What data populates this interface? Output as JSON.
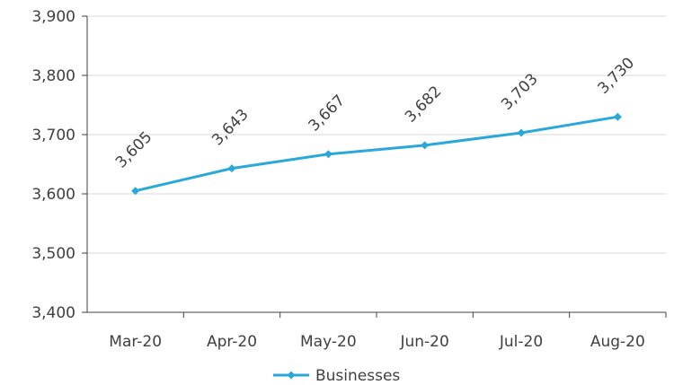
{
  "chart_data": {
    "type": "line",
    "title": "",
    "xlabel": "",
    "ylabel": "",
    "categories": [
      "Mar-20",
      "Apr-20",
      "May-20",
      "Jun-20",
      "Jul-20",
      "Aug-20"
    ],
    "series": [
      {
        "name": "Businesses",
        "values": [
          3605,
          3643,
          3667,
          3682,
          3703,
          3730
        ],
        "data_labels": [
          "3,605",
          "3,643",
          "3,667",
          "3,682",
          "3,703",
          "3,730"
        ],
        "color": "#2aa8d8",
        "marker": "diamond"
      }
    ],
    "ylim": [
      3400,
      3900
    ],
    "yticks": [
      3400,
      3500,
      3600,
      3700,
      3800,
      3900
    ],
    "ytick_labels": [
      "3,400",
      "3,500",
      "3,600",
      "3,700",
      "3,800",
      "3,900"
    ],
    "grid": true,
    "legend": "bottom"
  },
  "colors": {
    "series": "#2aa8d8",
    "grid": "#d9d9d9",
    "axis": "#404040",
    "text": "#404040"
  }
}
